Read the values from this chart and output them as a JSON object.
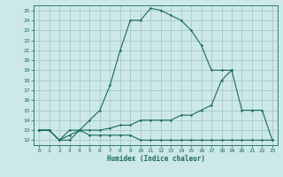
{
  "xlabel": "Humidex (Indice chaleur)",
  "xlim": [
    -0.5,
    23.5
  ],
  "ylim": [
    11.5,
    25.5
  ],
  "xticks": [
    0,
    1,
    2,
    3,
    4,
    5,
    6,
    7,
    8,
    9,
    10,
    11,
    12,
    13,
    14,
    15,
    16,
    17,
    18,
    19,
    20,
    21,
    22,
    23
  ],
  "yticks": [
    12,
    13,
    14,
    15,
    16,
    17,
    18,
    19,
    20,
    21,
    22,
    23,
    24,
    25
  ],
  "background_color": "#cce8e8",
  "grid_color": "#99bbbb",
  "line_color": "#1a6a5a",
  "line1_x": [
    0,
    1,
    2,
    3,
    4,
    5,
    6,
    7,
    8,
    9,
    10,
    11,
    12,
    13,
    14,
    15,
    16,
    17,
    18,
    19
  ],
  "line1_y": [
    13,
    13,
    12,
    13,
    13,
    14,
    15,
    17.5,
    21,
    24,
    24,
    25.2,
    25,
    24.5,
    24,
    23,
    21.5,
    19,
    19,
    19
  ],
  "line2_x": [
    0,
    1,
    2,
    3,
    4,
    5,
    6,
    7,
    8,
    9,
    10,
    11,
    12,
    13,
    14,
    15,
    16,
    17,
    18,
    19,
    20,
    21,
    22,
    23
  ],
  "line2_y": [
    13,
    13,
    12,
    12.5,
    13,
    13,
    13,
    13.2,
    13.5,
    13.5,
    14,
    14,
    14,
    14,
    14.5,
    14.5,
    15,
    15.5,
    18,
    19,
    15,
    15,
    15,
    12
  ],
  "line3_x": [
    0,
    1,
    2,
    3,
    4,
    5,
    6,
    7,
    8,
    9,
    10,
    11,
    12,
    13,
    14,
    15,
    16,
    17,
    18,
    19,
    20,
    21,
    22,
    23
  ],
  "line3_y": [
    13,
    13,
    12,
    12,
    13,
    12.5,
    12.5,
    12.5,
    12.5,
    12.5,
    12,
    12,
    12,
    12,
    12,
    12,
    12,
    12,
    12,
    12,
    12,
    12,
    12,
    12
  ]
}
